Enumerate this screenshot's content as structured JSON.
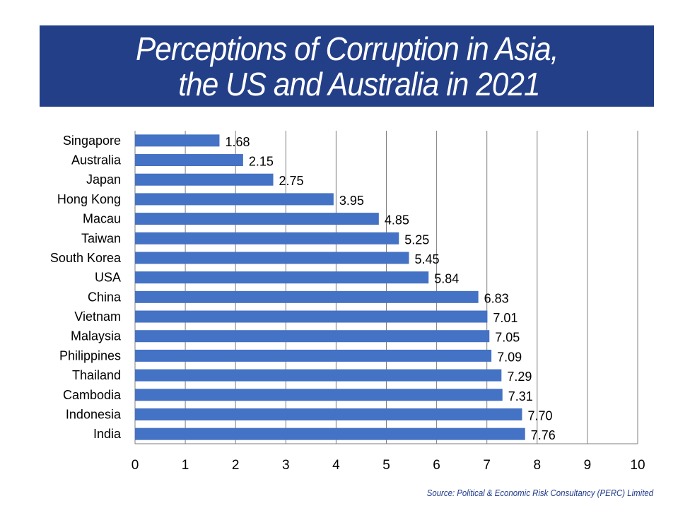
{
  "header": {
    "title_line1": "Perceptions of Corruption in Asia,",
    "title_line2": "the US and Australia in 2021"
  },
  "footer": {
    "source": "Source: Political & Economic Risk Consultancy (PERC) Limited"
  },
  "colors": {
    "title_band": "#233f88",
    "bar": "#4472c4",
    "grid": "#7f7f7f"
  },
  "chart_data": {
    "type": "bar",
    "orientation": "horizontal",
    "title": "Perceptions of Corruption in Asia, the US and Australia in 2021",
    "categories": [
      "Singapore",
      "Australia",
      "Japan",
      "Hong Kong",
      "Macau",
      "Taiwan",
      "South Korea",
      "USA",
      "China",
      "Vietnam",
      "Malaysia",
      "Philippines",
      "Thailand",
      "Cambodia",
      "Indonesia",
      "India"
    ],
    "values": [
      1.68,
      2.15,
      2.75,
      3.95,
      4.85,
      5.25,
      5.45,
      5.84,
      6.83,
      7.01,
      7.05,
      7.09,
      7.29,
      7.31,
      7.7,
      7.76
    ],
    "value_labels": [
      "1.68",
      "2.15",
      "2.75",
      "3.95",
      "4.85",
      "5.25",
      "5.45",
      "5.84",
      "6.83",
      "7.01",
      "7.05",
      "7.09",
      "7.29",
      "7.31",
      "7.70",
      "7.76"
    ],
    "xlim": [
      0,
      10
    ],
    "xticks": [
      "0",
      "1",
      "2",
      "3",
      "4",
      "5",
      "6",
      "7",
      "8",
      "9",
      "10"
    ],
    "grid": true,
    "legend": "none"
  }
}
